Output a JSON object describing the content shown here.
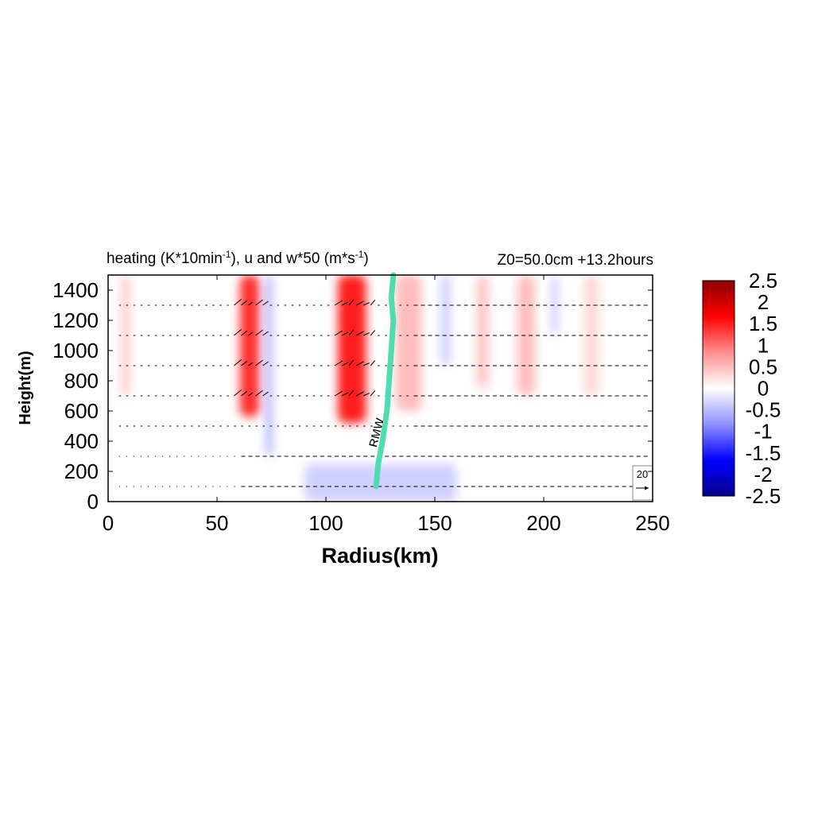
{
  "chart_data": {
    "type": "heatmap",
    "title_left": "heating (K*10min",
    "title_left_exp": "-1",
    "title_left_mid": "), u and w*50 (m*s",
    "title_left_exp2": "-1",
    "title_left_end": ")",
    "title_right": "Z0=50.0cm  +13.2hours",
    "xlabel": "Radius(km)",
    "ylabel": "Height(m)",
    "xlim": [
      0,
      250
    ],
    "ylim": [
      0,
      1500
    ],
    "xticks": [
      "0",
      "50",
      "100",
      "150",
      "200",
      "250"
    ],
    "yticks": [
      "0",
      "200",
      "400",
      "600",
      "800",
      "1000",
      "1200",
      "1400"
    ],
    "colorbar": {
      "min": -2.5,
      "max": 2.5,
      "ticks": [
        "2.5",
        "2",
        "1.5",
        "1",
        "0.5",
        "0",
        "-0.5",
        "-1",
        "-1.5",
        "-2",
        "-2.5"
      ],
      "colors": [
        "#08008a",
        "#0000ff",
        "#8f8fff",
        "#ffffff",
        "#ff8f8f",
        "#ff0000",
        "#8a0000"
      ]
    },
    "heating_bands": [
      {
        "x_center": 65,
        "x_width": 9,
        "y_range": [
          560,
          1500
        ],
        "value": 1.4
      },
      {
        "x_center": 112,
        "x_width": 13,
        "y_range": [
          520,
          1500
        ],
        "value": 1.5
      },
      {
        "x_center": 138,
        "x_width": 12,
        "y_range": [
          600,
          1500
        ],
        "value": 0.5
      },
      {
        "x_center": 192,
        "x_width": 8,
        "y_range": [
          700,
          1500
        ],
        "value": 0.5
      },
      {
        "x_center": 172,
        "x_width": 6,
        "y_range": [
          750,
          1500
        ],
        "value": 0.4
      },
      {
        "x_center": 222,
        "x_width": 7,
        "y_range": [
          700,
          1500
        ],
        "value": 0.3
      },
      {
        "x_center": 8,
        "x_width": 4,
        "y_range": [
          700,
          1500
        ],
        "value": 0.4
      },
      {
        "x_center": 74,
        "x_width": 3,
        "y_range": [
          300,
          1500
        ],
        "value": -0.6
      },
      {
        "x_center": 155,
        "x_width": 4,
        "y_range": [
          900,
          1500
        ],
        "value": -0.4
      },
      {
        "x_center": 205,
        "x_width": 3,
        "y_range": [
          1100,
          1500
        ],
        "value": -0.4
      },
      {
        "x_center": 125,
        "x_width": 70,
        "y_range": [
          0,
          250
        ],
        "value": -0.35
      }
    ],
    "vector_levels": [
      100,
      300,
      500,
      700,
      900,
      1100,
      1300
    ],
    "reference_vector": {
      "label": "20"
    },
    "rmw": {
      "label": "RMW",
      "color": "#4fdcb0",
      "points": [
        [
          123,
          100
        ],
        [
          124,
          250
        ],
        [
          126,
          400
        ],
        [
          128,
          600
        ],
        [
          129,
          800
        ],
        [
          130,
          1000
        ],
        [
          131,
          1200
        ],
        [
          130,
          1350
        ],
        [
          131,
          1500
        ]
      ]
    }
  }
}
